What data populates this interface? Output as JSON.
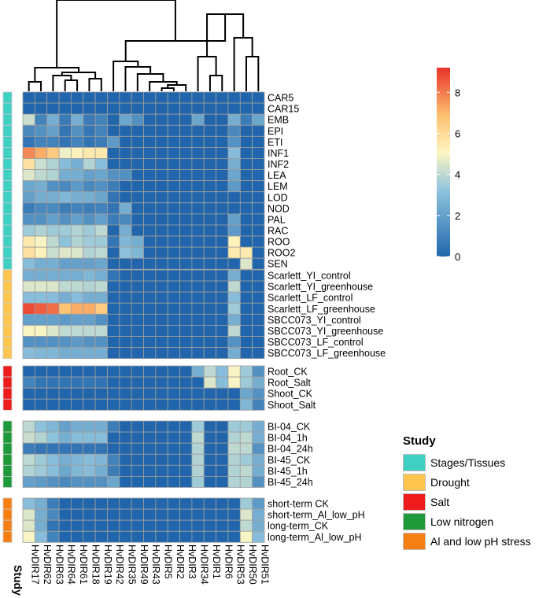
{
  "chart_data": {
    "type": "heatmap",
    "columns": [
      "HvDIR17",
      "HvDIR62",
      "HvDIR63",
      "HvDIR64",
      "HvDIR61",
      "HvDIR18",
      "HvDIR19",
      "HvDIR42",
      "HvDIR35",
      "HvDIR49",
      "HvDIR43",
      "HvDIR5",
      "HvDIR2",
      "HvDIR3",
      "HvDIR34",
      "HvDIR1",
      "HvDIR6",
      "HvDIR53",
      "HvDIR50",
      "HvDIR51"
    ],
    "color_scale": {
      "min": 0,
      "max": 9.2,
      "stops": [
        [
          0,
          "#2166ac"
        ],
        [
          0.35,
          "#8ec3dd"
        ],
        [
          0.55,
          "#fdf6c2"
        ],
        [
          0.75,
          "#fdbf6f"
        ],
        [
          1,
          "#e8322a"
        ]
      ],
      "ticks": [
        0,
        2,
        4,
        6,
        8
      ]
    },
    "study_axis_label": "Study",
    "legend": {
      "title": "Study",
      "items": [
        {
          "label": "Stages/Tissues",
          "color": "#3fd0c4"
        },
        {
          "label": "Drought",
          "color": "#ffc54f"
        },
        {
          "label": "Salt",
          "color": "#ee1c1c"
        },
        {
          "label": "Low nitrogen",
          "color": "#1f9a3a"
        },
        {
          "label": "Al and low pH stress",
          "color": "#f57f12"
        }
      ]
    },
    "groups": [
      {
        "study": "Stages/Tissues",
        "rows": [
          {
            "label": "CAR5",
            "values": [
              0,
              0,
              0,
              0,
              0,
              0,
              0,
              0,
              0,
              0,
              0,
              0,
              0,
              0,
              0,
              0,
              0,
              0,
              0,
              0
            ]
          },
          {
            "label": "CAR15",
            "values": [
              0,
              0,
              0,
              0,
              0,
              0,
              0,
              0,
              0,
              0,
              0,
              0,
              0,
              0,
              0,
              0,
              0,
              0,
              0,
              0
            ]
          },
          {
            "label": "EMB",
            "values": [
              4.2,
              1,
              2.5,
              0.7,
              2.5,
              0.7,
              1,
              0,
              2.2,
              1.5,
              0,
              0,
              0,
              0,
              2.2,
              0,
              0,
              2.5,
              0.8,
              2.2
            ]
          },
          {
            "label": "EPI",
            "values": [
              1.2,
              1.5,
              2,
              0.5,
              1.5,
              0.6,
              1,
              0,
              0,
              0,
              0,
              0,
              0,
              0,
              0,
              0,
              0,
              1.2,
              0,
              0
            ]
          },
          {
            "label": "ETI",
            "values": [
              0.5,
              1,
              1,
              0.5,
              1,
              0.5,
              0.8,
              1.8,
              0,
              0,
              0,
              0,
              0,
              0,
              0,
              0,
              0,
              1.5,
              0,
              0
            ]
          },
          {
            "label": "INF1",
            "values": [
              7.8,
              7.2,
              6.5,
              4.8,
              5.2,
              5.5,
              5.5,
              0,
              0,
              0,
              0,
              0,
              0,
              0,
              0,
              0,
              0,
              3,
              0,
              0
            ]
          },
          {
            "label": "INF2",
            "values": [
              5.8,
              4.2,
              3.8,
              3,
              2.5,
              3.8,
              3,
              0,
              0,
              0,
              0,
              0,
              0,
              0,
              0,
              0,
              0,
              2.5,
              0,
              0
            ]
          },
          {
            "label": "LEA",
            "values": [
              4.5,
              4,
              3.8,
              2.5,
              2.5,
              2,
              2.2,
              1.5,
              1.5,
              0,
              0,
              0,
              0,
              0,
              0,
              0,
              0,
              2.2,
              0,
              0
            ]
          },
          {
            "label": "LEM",
            "values": [
              2.2,
              2.5,
              1.5,
              1.2,
              1.8,
              1.2,
              1.5,
              0.8,
              0,
              0,
              0,
              0,
              0,
              0,
              0,
              0,
              0,
              1.8,
              0,
              0
            ]
          },
          {
            "label": "LOD",
            "values": [
              2,
              2.5,
              2.5,
              2.8,
              2.5,
              2.5,
              2.2,
              0.5,
              0,
              0,
              0,
              0,
              0,
              0,
              0,
              0,
              0,
              0,
              0,
              0
            ]
          },
          {
            "label": "NOD",
            "values": [
              0.8,
              1.2,
              1.2,
              0.8,
              1,
              0.8,
              1,
              0.5,
              2.5,
              0,
              0,
              0,
              0,
              0,
              0,
              0,
              0,
              0,
              0,
              0
            ]
          },
          {
            "label": "PAL",
            "values": [
              1.5,
              1.5,
              2,
              1.5,
              2,
              1.5,
              2,
              0.8,
              1.2,
              0,
              0,
              0,
              0,
              0,
              0,
              0,
              0,
              2,
              0,
              0
            ]
          },
          {
            "label": "RAC",
            "values": [
              3.5,
              3.8,
              3.5,
              3.5,
              3.8,
              3.5,
              4,
              0,
              2.5,
              0,
              0,
              0,
              0,
              0,
              0,
              0,
              0,
              1.8,
              0,
              0
            ]
          },
          {
            "label": "ROO",
            "values": [
              5.5,
              5,
              4,
              3.2,
              3.8,
              3.5,
              3.5,
              0.5,
              2.8,
              2.5,
              0,
              0,
              0,
              0,
              0,
              0,
              0,
              5.2,
              0,
              0
            ]
          },
          {
            "label": "ROO2",
            "values": [
              5.8,
              5.2,
              4.2,
              4.5,
              4.5,
              3.8,
              4,
              0,
              3.2,
              2.8,
              0,
              0,
              0,
              0,
              0,
              0,
              0,
              5.5,
              5.5,
              0
            ]
          },
          {
            "label": "SEN",
            "values": [
              3,
              2.5,
              2.5,
              2,
              2,
              2,
              2.2,
              0,
              0,
              0,
              0,
              0,
              0,
              0,
              0,
              0,
              0,
              0,
              4.5,
              0
            ]
          }
        ]
      },
      {
        "study": "Drought",
        "rows": [
          {
            "label": "Scarlett_YI_control",
            "values": [
              2.5,
              2.5,
              2.5,
              2.5,
              2.5,
              2.8,
              2.5,
              0.5,
              0,
              0,
              0,
              0,
              0,
              0,
              0,
              0,
              0,
              2.5,
              0,
              0
            ]
          },
          {
            "label": "Scarlett_YI_greenhouse",
            "values": [
              4.5,
              4.5,
              4.5,
              4,
              4,
              3.8,
              4,
              0,
              0,
              0,
              0,
              0,
              0,
              0,
              0,
              0,
              0,
              4,
              0,
              0
            ]
          },
          {
            "label": "Scarlett_LF_control",
            "values": [
              3,
              3,
              3,
              2.5,
              3,
              2.5,
              2.5,
              0,
              0,
              0,
              0,
              0,
              0,
              0,
              0,
              0,
              0,
              3,
              0,
              0
            ]
          },
          {
            "label": "Scarlett_LF_greenhouse",
            "values": [
              8.8,
              8.5,
              8.2,
              6.8,
              7.2,
              7.2,
              6.5,
              0,
              0,
              0,
              0,
              0,
              0,
              0,
              0,
              0,
              0,
              3.5,
              0,
              0
            ]
          },
          {
            "label": "SBCC073_YI_control",
            "values": [
              2,
              2,
              2,
              1.8,
              2,
              2,
              1.5,
              0,
              0,
              0,
              0,
              0,
              0,
              0,
              0,
              0,
              0,
              2.5,
              0,
              0
            ]
          },
          {
            "label": "SBCC073_YI_greenhouse",
            "values": [
              5,
              5,
              4.5,
              4,
              4,
              4,
              4,
              0,
              0,
              0,
              0,
              0,
              0,
              0,
              0,
              0,
              0,
              4,
              0,
              0
            ]
          },
          {
            "label": "SBCC073_LF_control",
            "values": [
              1.5,
              1.5,
              1.5,
              1.5,
              1.8,
              1.5,
              1.5,
              0,
              0,
              0,
              0,
              0,
              0,
              0,
              0,
              0,
              0,
              1.5,
              0,
              0
            ]
          },
          {
            "label": "SBCC073_LF_greenhouse",
            "values": [
              3,
              2.8,
              2.8,
              2.5,
              2.5,
              2.5,
              2.5,
              0,
              0,
              0,
              0,
              0,
              0,
              0,
              0,
              0,
              0,
              2.5,
              0,
              0
            ]
          }
        ]
      },
      {
        "study": "Salt",
        "rows": [
          {
            "label": "Root_CK",
            "values": [
              0,
              0,
              0,
              0,
              0,
              0,
              0,
              0,
              0,
              0,
              0,
              0,
              0,
              0,
              2.5,
              4,
              3,
              5,
              3.5,
              1.5
            ]
          },
          {
            "label": "Root_Salt",
            "values": [
              1,
              0.5,
              0.5,
              0.5,
              0.5,
              0.5,
              0.5,
              0,
              0,
              0,
              0,
              0,
              0,
              0,
              0,
              4.5,
              3,
              5,
              3.5,
              2.5
            ]
          },
          {
            "label": "Shoot_CK",
            "values": [
              0,
              0,
              0,
              0,
              0,
              0,
              0,
              0,
              0,
              0,
              0,
              0,
              0,
              0,
              0,
              0,
              0,
              0,
              2.2,
              1.5
            ]
          },
          {
            "label": "Shoot_Salt",
            "values": [
              0,
              0,
              0,
              0,
              0,
              0,
              0,
              0,
              0,
              0,
              0,
              0,
              0,
              0,
              0,
              0,
              0,
              0,
              2.8,
              1
            ]
          }
        ]
      },
      {
        "study": "Low nitrogen",
        "rows": [
          {
            "label": "BI-04_CK",
            "values": [
              4,
              3.2,
              2.8,
              2,
              2.5,
              2.5,
              2.5,
              0.8,
              0,
              0,
              0,
              0,
              0,
              0,
              3.5,
              0,
              0,
              3.5,
              3.5,
              2.5
            ]
          },
          {
            "label": "BI-04_1h",
            "values": [
              4.2,
              3.8,
              3.2,
              2.5,
              3,
              3,
              3,
              0,
              0,
              0,
              0,
              0,
              0,
              0,
              4,
              0,
              0,
              3.8,
              4,
              2.5
            ]
          },
          {
            "label": "BI-04_24h",
            "values": [
              0.8,
              0.5,
              0.5,
              0.5,
              0.5,
              0.5,
              0.5,
              0,
              0,
              0,
              0,
              0,
              0,
              0,
              3.8,
              0,
              0,
              4,
              4,
              1.5
            ]
          },
          {
            "label": "BI-45_CK",
            "values": [
              4,
              3.5,
              3,
              2.5,
              2.8,
              3,
              2.8,
              1,
              0,
              0,
              0,
              0,
              0,
              0,
              3.8,
              0,
              0,
              3.8,
              3.5,
              2.5
            ]
          },
          {
            "label": "BI-45_1h",
            "values": [
              3.8,
              3.5,
              3,
              2.2,
              2.8,
              3,
              2.5,
              0.8,
              0,
              0,
              0,
              0,
              0,
              0,
              3.8,
              0,
              0,
              3.8,
              4,
              2.5
            ]
          },
          {
            "label": "BI-45_24h",
            "values": [
              2,
              1.8,
              1.5,
              1.2,
              1.5,
              1.5,
              1.5,
              2.2,
              0,
              0,
              0,
              0,
              0,
              0,
              3.5,
              0,
              0,
              3.8,
              3.8,
              1.5
            ]
          }
        ]
      },
      {
        "study": "Al and low pH stress",
        "rows": [
          {
            "label": "short-term CK",
            "values": [
              3,
              2.5,
              0.8,
              0,
              0,
              0,
              0,
              0,
              0,
              0,
              0,
              0,
              0,
              0,
              0,
              0,
              0,
              0,
              3.5,
              1.8
            ]
          },
          {
            "label": "short-term_Al_low_pH",
            "values": [
              4.5,
              2.5,
              1.2,
              0,
              0,
              0,
              0,
              0,
              0,
              0,
              0,
              0,
              0,
              0,
              0,
              0,
              0,
              0,
              4.5,
              2.5
            ]
          },
          {
            "label": "long-term_CK",
            "values": [
              4.5,
              2.5,
              0.5,
              0,
              0,
              0,
              0,
              0,
              0,
              0,
              0,
              0,
              0,
              0,
              0,
              0,
              0,
              0,
              4,
              2.5
            ]
          },
          {
            "label": "long-term_Al_low_pH",
            "values": [
              5,
              3,
              1,
              0,
              0,
              0,
              0,
              0,
              0,
              0,
              0,
              0,
              0,
              0,
              0,
              0,
              0,
              0,
              5,
              3
            ]
          }
        ]
      }
    ]
  }
}
